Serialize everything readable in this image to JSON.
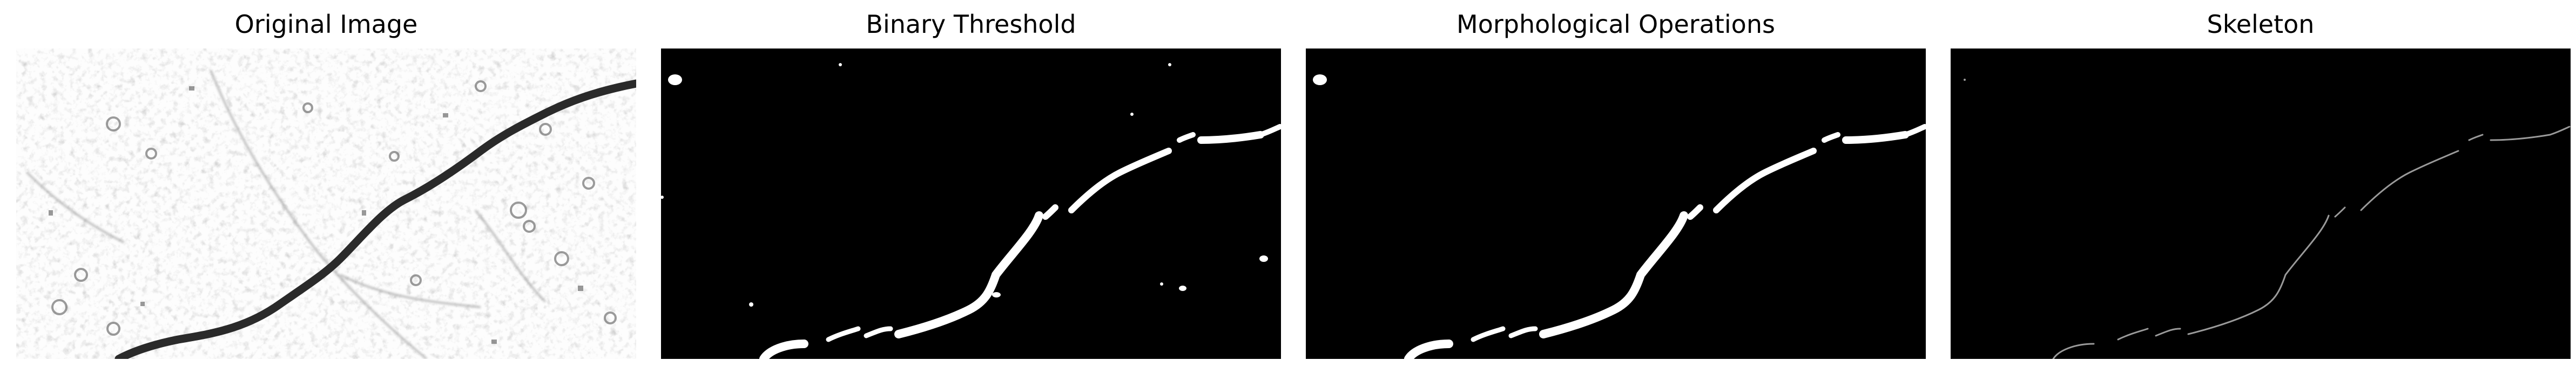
{
  "figure": {
    "panels": [
      {
        "title": "Original Image",
        "content": "grayscale-texture-with-crack"
      },
      {
        "title": "Binary Threshold",
        "content": "binary-mask"
      },
      {
        "title": "Morphological Operations",
        "content": "cleaned-binary-mask"
      },
      {
        "title": "Skeleton",
        "content": "one-pixel-skeleton"
      }
    ]
  },
  "colors": {
    "background": "#ffffff",
    "mask_background": "#000000",
    "mask_foreground": "#ffffff",
    "texture_light": "#eeeeee",
    "crack_dark": "#2a2a2a",
    "skeleton_line": "#9a9a9a"
  }
}
